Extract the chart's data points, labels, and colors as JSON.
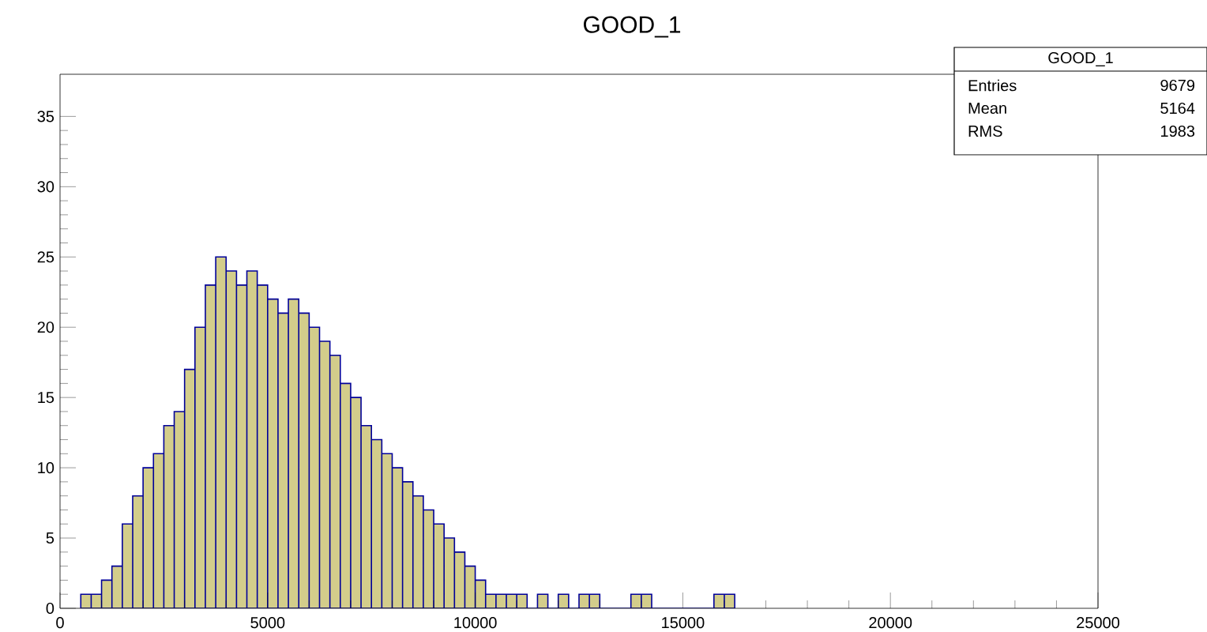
{
  "chart_data": {
    "type": "histogram",
    "title": "GOOD_1",
    "bins": [
      500,
      750,
      1000,
      1250,
      1500,
      1750,
      2000,
      2250,
      2500,
      2750,
      3000,
      3250,
      3500,
      3750,
      4000,
      4250,
      4500,
      4750,
      5000,
      5250,
      5500,
      5750,
      6000,
      6250,
      6500,
      6750,
      7000,
      7250,
      7500,
      7750,
      8000,
      8250,
      8500,
      8750,
      9000,
      9250,
      9500,
      9750,
      10000,
      10250,
      10500,
      10750,
      11000,
      11250,
      11500,
      11750,
      12000,
      12250,
      12500,
      12750,
      13000,
      13250,
      13500,
      13750,
      14000,
      14250,
      14500,
      14750,
      15000,
      15250,
      15500,
      15750,
      16000,
      16250
    ],
    "values": [
      1,
      1,
      2,
      3,
      6,
      8,
      10,
      11,
      13,
      14,
      17,
      20,
      23,
      25,
      24,
      23,
      24,
      23,
      22,
      21,
      22,
      21,
      20,
      19,
      18,
      16,
      15,
      13,
      12,
      11,
      10,
      9,
      8,
      7,
      6,
      5,
      4,
      3,
      2,
      1,
      1,
      1,
      1,
      0,
      1,
      0,
      1,
      0,
      1,
      1,
      0,
      0,
      0,
      1,
      1,
      0,
      0,
      0,
      0,
      0,
      0,
      1,
      1
    ],
    "color": "#d3cd8b",
    "xlim": [
      0,
      25000
    ],
    "xticks": [
      0,
      5000,
      10000,
      15000,
      20000,
      25000
    ],
    "ylim": [
      0,
      38
    ],
    "yticks": [
      0,
      5,
      10,
      15,
      20,
      25,
      30,
      35
    ],
    "annotations": [
      "GOOD_1",
      "Entries",
      "9679",
      "Mean",
      "5164",
      "RMS",
      "1983"
    ]
  }
}
